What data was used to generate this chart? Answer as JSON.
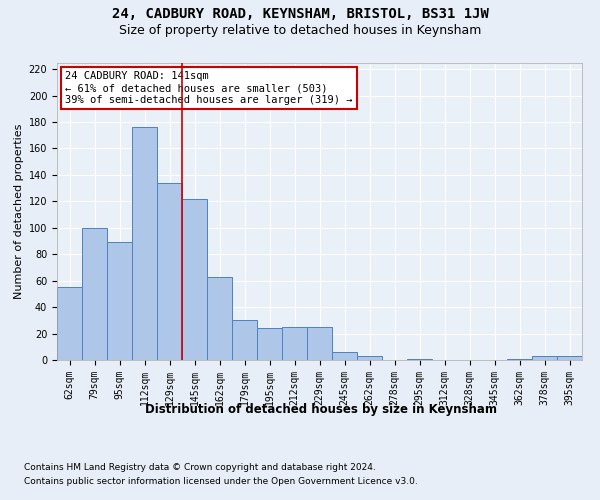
{
  "title1": "24, CADBURY ROAD, KEYNSHAM, BRISTOL, BS31 1JW",
  "title2": "Size of property relative to detached houses in Keynsham",
  "xlabel": "Distribution of detached houses by size in Keynsham",
  "ylabel": "Number of detached properties",
  "categories": [
    "62sqm",
    "79sqm",
    "95sqm",
    "112sqm",
    "129sqm",
    "145sqm",
    "162sqm",
    "179sqm",
    "195sqm",
    "212sqm",
    "229sqm",
    "245sqm",
    "262sqm",
    "278sqm",
    "295sqm",
    "312sqm",
    "328sqm",
    "345sqm",
    "362sqm",
    "378sqm",
    "395sqm"
  ],
  "values": [
    55,
    100,
    89,
    176,
    134,
    122,
    63,
    30,
    24,
    25,
    25,
    6,
    3,
    0,
    1,
    0,
    0,
    0,
    1,
    3,
    3
  ],
  "bar_color": "#aec6e8",
  "bar_edge_color": "#5080c0",
  "vline_x_index": 4.5,
  "vline_color": "#cc0000",
  "property_label": "24 CADBURY ROAD: 141sqm",
  "annotation_line1": "← 61% of detached houses are smaller (503)",
  "annotation_line2": "39% of semi-detached houses are larger (319) →",
  "annotation_box_color": "#ffffff",
  "annotation_box_edge": "#cc0000",
  "ylim": [
    0,
    225
  ],
  "yticks": [
    0,
    20,
    40,
    60,
    80,
    100,
    120,
    140,
    160,
    180,
    200,
    220
  ],
  "footer1": "Contains HM Land Registry data © Crown copyright and database right 2024.",
  "footer2": "Contains public sector information licensed under the Open Government Licence v3.0.",
  "bg_color": "#e8eef7",
  "plot_bg_color": "#eaf0f8",
  "grid_color": "#ffffff",
  "title1_fontsize": 10,
  "title2_fontsize": 9,
  "xlabel_fontsize": 8.5,
  "ylabel_fontsize": 8,
  "tick_fontsize": 7,
  "annot_fontsize": 7.5,
  "footer_fontsize": 6.5
}
